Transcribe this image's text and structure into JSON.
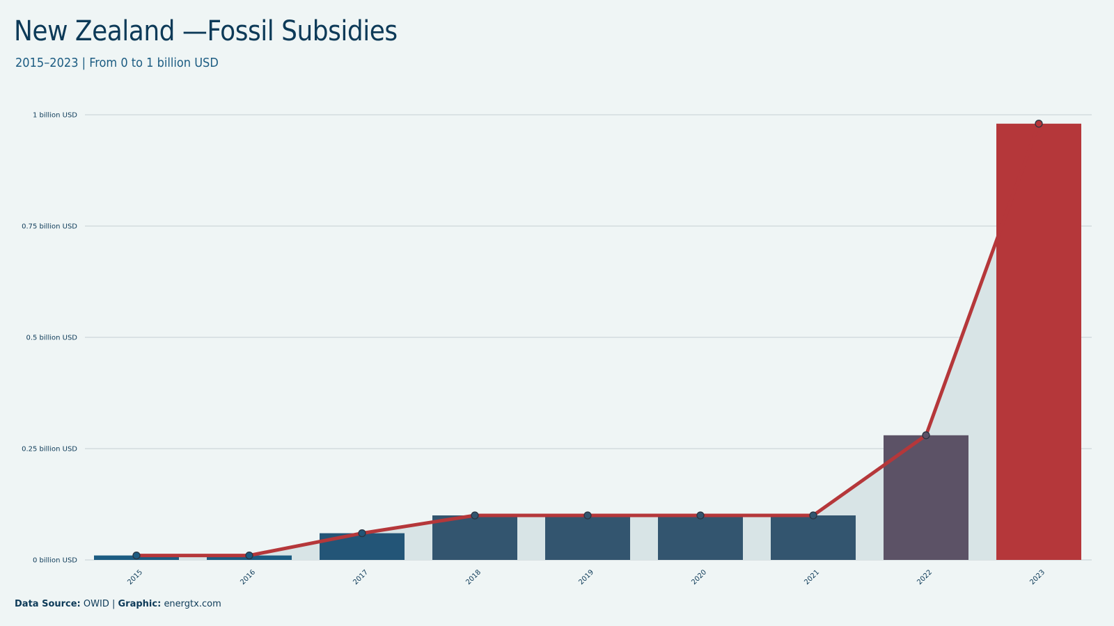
{
  "header": {
    "title": "New Zealand —Fossil Subsidies",
    "subtitle": "2015–2023 | From 0 to 1 billion USD"
  },
  "footer": {
    "source_label": "Data Source:",
    "source_value": "OWID",
    "separator": "|",
    "graphic_label": "Graphic:",
    "graphic_value": "energtx.com"
  },
  "colors": {
    "background": "#eff5f5",
    "area_fill": "#d8e4e6",
    "line": "#b5373a",
    "bar_low": "#1c5c82",
    "bar_mid": "#33556f",
    "bar_2022": "#5c5266",
    "bar_2023": "#b5373a",
    "grid": "#cdd8db",
    "text": "#0d3a58"
  },
  "chart_data": {
    "type": "bar",
    "categories": [
      "2015",
      "2016",
      "2017",
      "2018",
      "2019",
      "2020",
      "2021",
      "2022",
      "2023"
    ],
    "values": [
      0.01,
      0.01,
      0.06,
      0.1,
      0.1,
      0.1,
      0.1,
      0.28,
      0.98
    ],
    "bar_colors": [
      "#1c5c82",
      "#1c5c82",
      "#235577",
      "#33556f",
      "#33556f",
      "#33556f",
      "#33556f",
      "#5c5266",
      "#b5373a"
    ],
    "overlay": "line with markers and shaded area",
    "ylim": [
      0,
      1
    ],
    "yticks": [
      0,
      0.25,
      0.5,
      0.75,
      1
    ],
    "ytick_labels": [
      "0 billion USD",
      "0.25 billion USD",
      "0.5 billion USD",
      "0.75 billion USD",
      "1 billion USD"
    ],
    "grid": true,
    "legend": "none",
    "title": "New Zealand —Fossil Subsidies",
    "subtitle": "2015–2023 | From 0 to 1 billion USD"
  }
}
